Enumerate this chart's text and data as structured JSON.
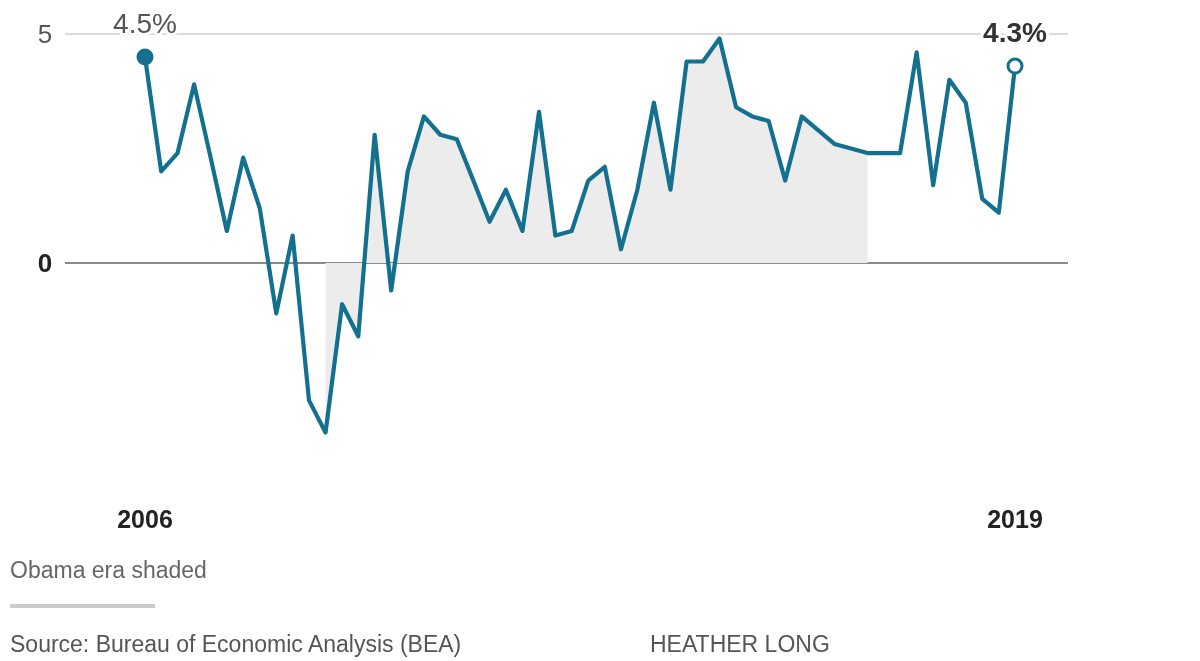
{
  "chart_data": {
    "type": "line",
    "x": [
      "2006-01",
      "2006-04",
      "2006-07",
      "2006-10",
      "2007-01",
      "2007-04",
      "2007-07",
      "2007-10",
      "2008-01",
      "2008-04",
      "2008-07",
      "2008-10",
      "2009-01",
      "2009-04",
      "2009-07",
      "2009-10",
      "2010-01",
      "2010-04",
      "2010-07",
      "2010-10",
      "2011-01",
      "2011-04",
      "2011-07",
      "2011-10",
      "2012-01",
      "2012-04",
      "2012-07",
      "2012-10",
      "2013-01",
      "2013-04",
      "2013-07",
      "2013-10",
      "2014-01",
      "2014-04",
      "2014-07",
      "2014-10",
      "2015-01",
      "2015-04",
      "2015-07",
      "2015-10",
      "2016-01",
      "2016-04",
      "2016-07",
      "2016-10",
      "2017-01",
      "2017-04",
      "2017-07",
      "2017-10",
      "2018-01",
      "2018-04",
      "2018-07",
      "2018-10",
      "2019-01",
      "2019-04"
    ],
    "series": [
      {
        "color": "#13708f",
        "values": [
          4.5,
          2.0,
          2.4,
          3.9,
          2.3,
          0.7,
          2.3,
          1.2,
          -1.1,
          0.6,
          -3.0,
          -3.7,
          -0.9,
          -1.6,
          2.8,
          -0.6,
          2.0,
          3.2,
          2.8,
          2.7,
          1.8,
          0.9,
          1.6,
          0.7,
          3.3,
          0.6,
          0.7,
          1.8,
          2.1,
          0.3,
          1.6,
          3.5,
          1.6,
          4.4,
          4.4,
          4.9,
          3.4,
          3.2,
          3.1,
          1.8,
          3.2,
          2.9,
          2.6,
          2.5,
          2.4,
          2.4,
          2.4,
          4.6,
          1.7,
          4.0,
          3.5,
          1.4,
          1.1,
          4.3
        ]
      },
      {
        "type": "scatter",
        "color": "#13708f",
        "marker": "circle",
        "x": [
          "2006-01",
          "2019-04"
        ],
        "values": [
          4.5,
          4.3
        ],
        "value_labels": [
          "4.5%",
          "4.3%"
        ]
      }
    ],
    "xlim": [
      "2006-01",
      "2019-04"
    ],
    "xticks": [
      {
        "value": "2006-01",
        "label": "2006"
      },
      {
        "value": "2019-04",
        "label": "2019"
      }
    ],
    "ylim": [
      -3.7,
      5
    ],
    "yticks": [
      0,
      5
    ],
    "grid": "y",
    "bands": [
      {
        "axis": "x",
        "from": "2008-10",
        "to": "2017-01",
        "color": "#ececec"
      }
    ],
    "annotations": [
      "Obama era shaded",
      "Source: Bureau of Economic Analysis (BEA)",
      "HEATHER LONG"
    ]
  }
}
